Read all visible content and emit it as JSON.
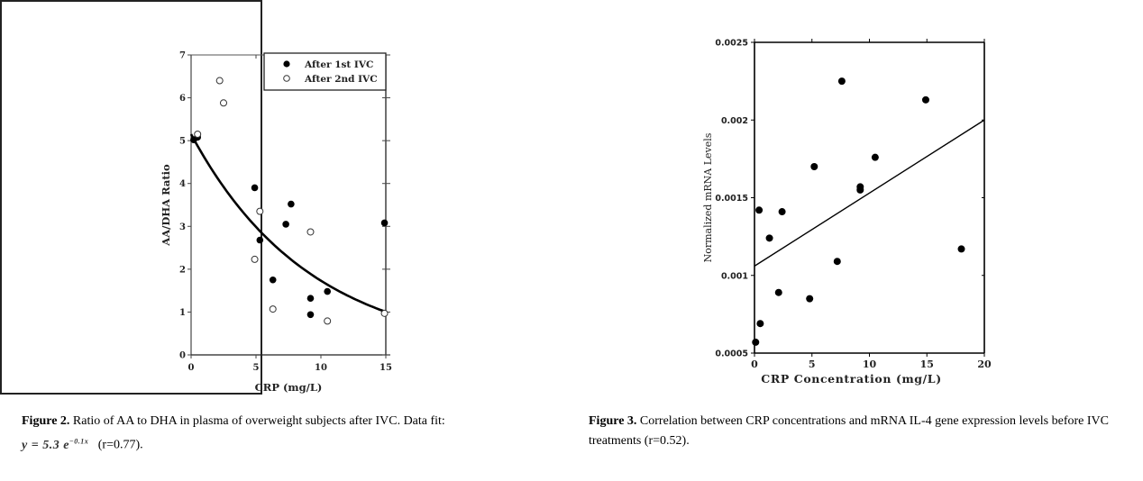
{
  "figure2": {
    "caption_label": "Figure 2.",
    "caption_text": " Ratio of AA to DHA in plasma of overweight subjects after IVC. Data fit:",
    "formula_base": "y = 5.3 e",
    "formula_exp": "−0.1x",
    "caption_tail": "   (r=0.77)."
  },
  "figure3": {
    "caption_label": "Figure 3.",
    "caption_text": " Correlation between CRP concentrations and mRNA IL-4 gene expression levels before IVC treatments (r=0.52)."
  },
  "chart_data": [
    {
      "type": "scatter",
      "title": "",
      "xlabel": "CRP (mg/L)",
      "ylabel": "AA/DHA Ratio",
      "xlim": [
        0,
        15
      ],
      "ylim": [
        0,
        7
      ],
      "xticks": [
        "0",
        "5",
        "10",
        "15"
      ],
      "yticks": [
        "0",
        "1",
        "2",
        "3",
        "4",
        "5",
        "6",
        "7"
      ],
      "legend": {
        "position": "top-right",
        "entries": [
          "After 1st IVC",
          "After 2nd IVC"
        ]
      },
      "fit": {
        "type": "exponential",
        "a": 5.3,
        "b": -0.1,
        "x_range": [
          0,
          15
        ]
      },
      "series": [
        {
          "name": "After 1st IVC",
          "marker": "filled-circle",
          "points": [
            [
              0.2,
              5.02
            ],
            [
              0.5,
              5.08
            ],
            [
              4.9,
              3.9
            ],
            [
              5.3,
              2.68
            ],
            [
              6.3,
              1.75
            ],
            [
              7.3,
              3.05
            ],
            [
              7.7,
              3.52
            ],
            [
              9.2,
              1.32
            ],
            [
              9.2,
              0.94
            ],
            [
              10.5,
              1.48
            ],
            [
              14.9,
              3.08
            ]
          ]
        },
        {
          "name": "After 2nd IVC",
          "marker": "open-circle",
          "points": [
            [
              0.5,
              5.15
            ],
            [
              2.2,
              6.4
            ],
            [
              2.5,
              5.88
            ],
            [
              4.9,
              2.23
            ],
            [
              5.3,
              3.35
            ],
            [
              6.3,
              1.07
            ],
            [
              9.2,
              2.87
            ],
            [
              10.5,
              0.79
            ],
            [
              14.9,
              0.97
            ]
          ]
        }
      ]
    },
    {
      "type": "scatter",
      "title": "",
      "xlabel": "CRP Concentration (mg/L)",
      "ylabel": "Normalized mRNA Levels",
      "xlim": [
        0,
        20
      ],
      "ylim": [
        0.0005,
        0.0025
      ],
      "xticks": [
        "0",
        "5",
        "10",
        "15",
        "20"
      ],
      "yticks": [
        "0.0005",
        "0.001",
        "0.0015",
        "0.002",
        "0.0025"
      ],
      "fit": {
        "type": "linear",
        "points": [
          [
            0,
            0.00106
          ],
          [
            20,
            0.002
          ]
        ]
      },
      "series": [
        {
          "name": "IL-4",
          "marker": "filled-circle",
          "points": [
            [
              0.1,
              0.00057
            ],
            [
              0.5,
              0.00069
            ],
            [
              0.4,
              0.00142
            ],
            [
              1.3,
              0.00124
            ],
            [
              2.1,
              0.00089
            ],
            [
              2.4,
              0.00141
            ],
            [
              4.8,
              0.00085
            ],
            [
              5.2,
              0.0017
            ],
            [
              7.2,
              0.00109
            ],
            [
              7.6,
              0.00225
            ],
            [
              9.2,
              0.00155
            ],
            [
              9.2,
              0.00157
            ],
            [
              10.5,
              0.00176
            ],
            [
              14.9,
              0.00213
            ],
            [
              18.0,
              0.00117
            ]
          ]
        }
      ]
    }
  ]
}
